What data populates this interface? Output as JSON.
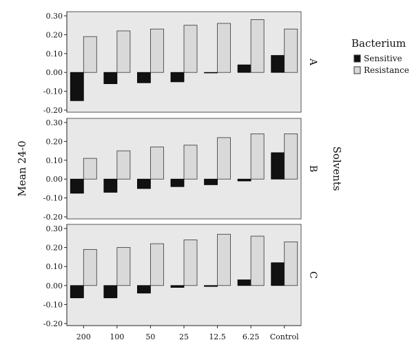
{
  "chart_data": {
    "type": "bar",
    "ylabel": "Mean 24-0",
    "facet_label": "Solvents",
    "categories": [
      "200",
      "100",
      "50",
      "25",
      "12.5",
      "6.25",
      "Control"
    ],
    "ylim": [
      -0.2,
      0.3
    ],
    "yticks": [
      "0.30",
      "0.20",
      "0.10",
      "0.00",
      "-0.10",
      "-0.20"
    ],
    "legend": {
      "title": "Bacterium",
      "position": "right",
      "items": [
        {
          "name": "Sensitive",
          "color": "#111111"
        },
        {
          "name": "Resistance",
          "color": "#d9d9d9"
        }
      ]
    },
    "panels": [
      {
        "label": "A",
        "series": [
          {
            "name": "Sensitive",
            "values": [
              -0.15,
              -0.06,
              -0.055,
              -0.05,
              0.0,
              0.04,
              0.09
            ]
          },
          {
            "name": "Resistance",
            "values": [
              0.19,
              0.22,
              0.23,
              0.25,
              0.26,
              0.28,
              0.23
            ]
          }
        ]
      },
      {
        "label": "B",
        "series": [
          {
            "name": "Sensitive",
            "values": [
              -0.075,
              -0.07,
              -0.05,
              -0.04,
              -0.03,
              -0.01,
              0.14
            ]
          },
          {
            "name": "Resistance",
            "values": [
              0.11,
              0.15,
              0.17,
              0.18,
              0.22,
              0.24,
              0.24
            ]
          }
        ]
      },
      {
        "label": "C",
        "series": [
          {
            "name": "Sensitive",
            "values": [
              -0.065,
              -0.065,
              -0.04,
              -0.01,
              -0.005,
              0.03,
              0.12
            ]
          },
          {
            "name": "Resistance",
            "values": [
              0.19,
              0.2,
              0.22,
              0.24,
              0.27,
              0.26,
              0.23
            ]
          }
        ]
      }
    ],
    "colors": {
      "panel_bg": "#e8e8e8",
      "sensitive": "#111111",
      "resistance": "#d9d9d9",
      "border": "#555555"
    }
  }
}
